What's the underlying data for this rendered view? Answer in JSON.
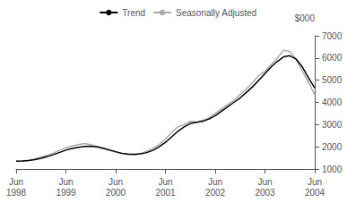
{
  "chart_data": {
    "type": "line",
    "ylabel": "$000",
    "categories": [
      "Jun\n1998",
      null,
      null,
      null,
      null,
      null,
      null,
      null,
      "Jun\n1999",
      null,
      null,
      null,
      null,
      null,
      null,
      null,
      "Jun\n2000",
      null,
      null,
      null,
      null,
      null,
      null,
      null,
      "Jun\n2001",
      null,
      null,
      null,
      null,
      null,
      null,
      null,
      "Jun\n2002",
      null,
      null,
      null,
      null,
      null,
      null,
      null,
      "Jun\n2003",
      null,
      null,
      null,
      null,
      null,
      null,
      null,
      "Jun\n2004"
    ],
    "series": [
      {
        "name": "Seasonally Adjusted",
        "color": "#aaaaaa",
        "values": [
          1350,
          1360,
          1390,
          1450,
          1530,
          1620,
          1720,
          1850,
          1960,
          2040,
          2100,
          2150,
          2100,
          2020,
          1930,
          1830,
          1760,
          1690,
          1640,
          1640,
          1700,
          1800,
          1930,
          2100,
          2350,
          2650,
          2900,
          3000,
          3150,
          3100,
          3200,
          3300,
          3500,
          3700,
          3900,
          4100,
          4350,
          4600,
          4900,
          5200,
          5400,
          5700,
          6000,
          6350,
          6300,
          5950,
          5400,
          4900,
          4350
        ]
      },
      {
        "name": "Trend",
        "color": "#000000",
        "values": [
          1350,
          1360,
          1380,
          1420,
          1480,
          1560,
          1650,
          1750,
          1850,
          1930,
          1980,
          2020,
          2030,
          2000,
          1940,
          1860,
          1780,
          1710,
          1670,
          1660,
          1680,
          1740,
          1840,
          2000,
          2200,
          2450,
          2700,
          2900,
          3050,
          3100,
          3150,
          3250,
          3400,
          3600,
          3800,
          4000,
          4200,
          4450,
          4700,
          5000,
          5300,
          5600,
          5850,
          6050,
          6100,
          5950,
          5600,
          5100,
          4650
        ]
      }
    ],
    "ylim": [
      1000,
      7000
    ],
    "yticks": [
      1000,
      2000,
      3000,
      4000,
      5000,
      6000,
      7000
    ],
    "grid": false,
    "legend": "upper center"
  }
}
